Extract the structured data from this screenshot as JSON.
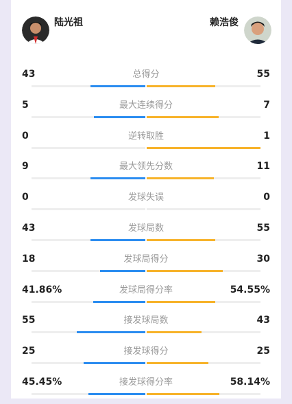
{
  "players": {
    "left": {
      "name": "陆光祖"
    },
    "right": {
      "name": "赖浩俊"
    }
  },
  "colors": {
    "left_bar": "#2c8df0",
    "right_bar": "#f7b32b"
  },
  "stats": [
    {
      "label": "总得分",
      "left": "43",
      "right": "55",
      "left_fill": 0.48,
      "right_fill": 0.6
    },
    {
      "label": "最大连续得分",
      "left": "5",
      "right": "7",
      "left_fill": 0.45,
      "right_fill": 0.63
    },
    {
      "label": "逆转取胜",
      "left": "0",
      "right": "1",
      "left_fill": 0.0,
      "right_fill": 1.0
    },
    {
      "label": "最大领先分数",
      "left": "9",
      "right": "11",
      "left_fill": 0.48,
      "right_fill": 0.59
    },
    {
      "label": "发球失误",
      "left": "0",
      "right": "0",
      "left_fill": 0.0,
      "right_fill": 0.0
    },
    {
      "label": "发球局数",
      "left": "43",
      "right": "55",
      "left_fill": 0.48,
      "right_fill": 0.6
    },
    {
      "label": "发球局得分",
      "left": "18",
      "right": "30",
      "left_fill": 0.4,
      "right_fill": 0.67
    },
    {
      "label": "发球局得分率",
      "left": "41.86%",
      "right": "54.55%",
      "left_fill": 0.46,
      "right_fill": 0.6
    },
    {
      "label": "接发球局数",
      "left": "55",
      "right": "43",
      "left_fill": 0.6,
      "right_fill": 0.48
    },
    {
      "label": "接发球得分",
      "left": "25",
      "right": "25",
      "left_fill": 0.54,
      "right_fill": 0.54
    },
    {
      "label": "接发球得分率",
      "left": "45.45%",
      "right": "58.14%",
      "left_fill": 0.5,
      "right_fill": 0.64
    }
  ]
}
